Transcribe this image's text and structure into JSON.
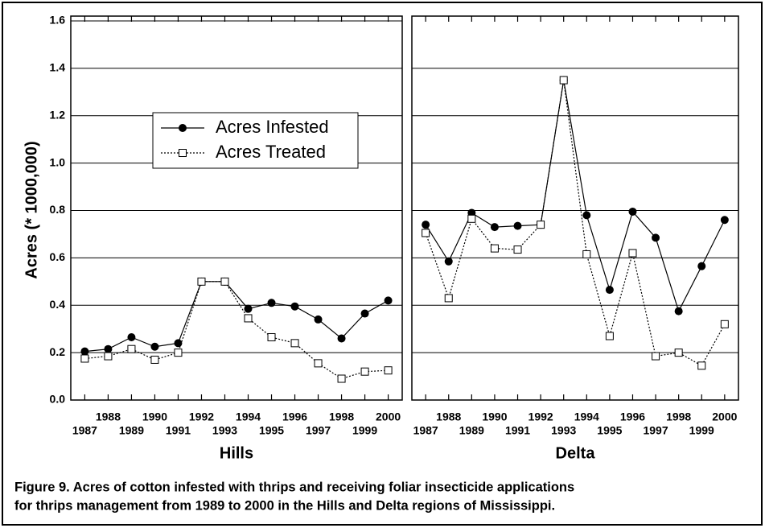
{
  "caption": [
    "Figure 9. Acres of cotton infested with thrips and receiving foliar insecticide applications",
    "for thrips management from 1989 to 2000 in the Hills and Delta regions of Mississippi."
  ],
  "chart_data": [
    {
      "type": "line",
      "ylabel": "Acres (* 1000,000)",
      "xlabel": "Hills",
      "legend": true,
      "grid": true,
      "x": [
        1987,
        1988,
        1989,
        1990,
        1991,
        1992,
        1993,
        1994,
        1995,
        1996,
        1997,
        1998,
        1999,
        2000
      ],
      "xlim": [
        1986.4,
        2000.6
      ],
      "xticks": [
        1987,
        1988,
        1989,
        1990,
        1991,
        1992,
        1993,
        1994,
        1995,
        1996,
        1997,
        1998,
        1999,
        2000
      ],
      "ylim": [
        0,
        1.6
      ],
      "yticks": [
        {
          "value": 0,
          "label": "0.0"
        },
        0.2,
        0.4,
        0.6,
        0.8,
        {
          "value": 1,
          "label": "1.0"
        },
        1.2,
        1.4,
        1.6
      ],
      "series": [
        {
          "name": "Acres Infested",
          "color": "#000000",
          "marker": "circle",
          "values": [
            0.205,
            0.215,
            0.265,
            0.225,
            0.24,
            0.5,
            0.5,
            0.385,
            0.41,
            0.395,
            0.34,
            0.26,
            0.365,
            0.42
          ]
        },
        {
          "name": "Acres Treated",
          "color": "#000000",
          "marker": "square",
          "values": [
            0.175,
            0.185,
            0.215,
            0.17,
            0.2,
            0.5,
            0.5,
            0.345,
            0.265,
            0.24,
            0.155,
            0.09,
            0.12,
            0.125
          ]
        }
      ]
    },
    {
      "type": "line",
      "xlabel": "Delta",
      "legend": false,
      "grid": true,
      "x": [
        1987,
        1988,
        1989,
        1990,
        1991,
        1992,
        1993,
        1994,
        1995,
        1996,
        1997,
        1998,
        1999,
        2000
      ],
      "xlim": [
        1986.4,
        2000.6
      ],
      "xticks": [
        1987,
        1988,
        1989,
        1990,
        1991,
        1992,
        1993,
        1994,
        1995,
        1996,
        1997,
        1998,
        1999,
        2000
      ],
      "ylim": [
        0,
        1.6
      ],
      "yticks": [
        0.2,
        0.4,
        0.6,
        0.8,
        1,
        1.2,
        1.4
      ],
      "series": [
        {
          "name": "Acres Infested",
          "color": "#000000",
          "marker": "circle",
          "values": [
            0.74,
            0.585,
            0.79,
            0.73,
            0.735,
            0.74,
            1.35,
            0.78,
            0.465,
            0.795,
            0.685,
            0.375,
            0.565,
            0.76
          ]
        },
        {
          "name": "Acres Treated",
          "color": "#000000",
          "marker": "square",
          "values": [
            0.705,
            0.43,
            0.765,
            0.64,
            0.635,
            0.74,
            1.35,
            0.615,
            0.27,
            0.62,
            0.185,
            0.2,
            0.145,
            0.32
          ]
        }
      ]
    }
  ]
}
